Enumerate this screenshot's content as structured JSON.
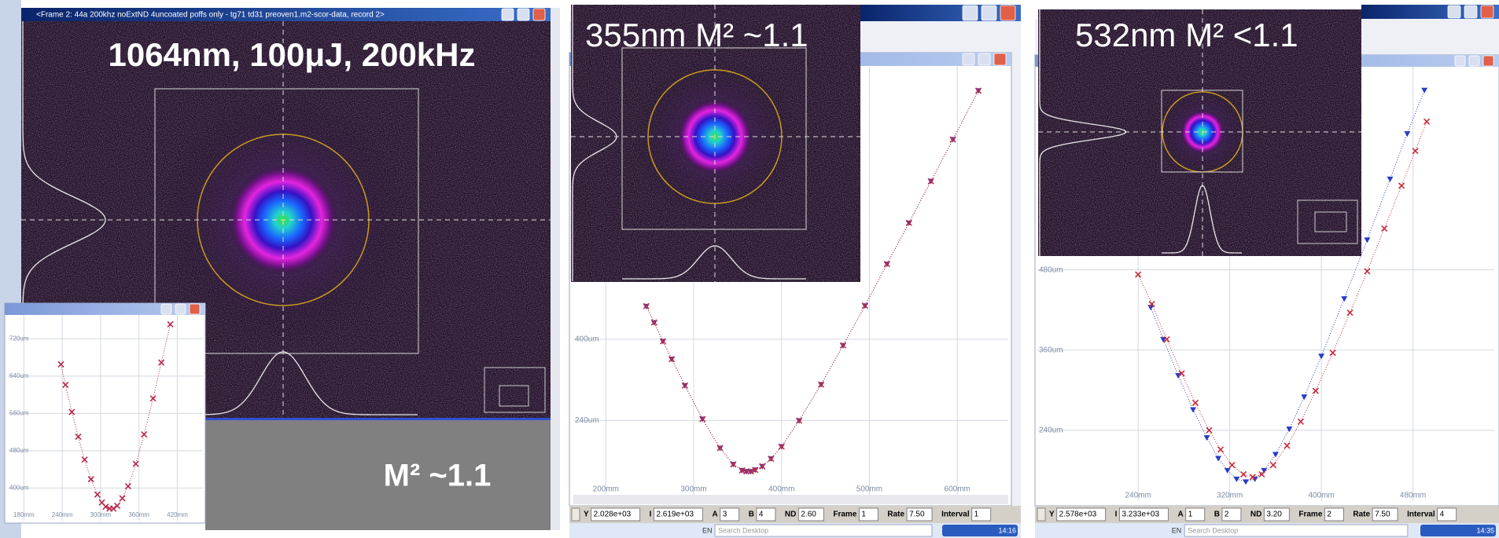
{
  "panels": [
    {
      "window_title": "<Frame 2:  44a 200khz noExtND 4uncoated poffs only - tg71 td31 preoven1.m2-scor-data, record 2>",
      "title": "1064nm, 100μJ, 200kHz",
      "m2_label": "M² ~1.1",
      "plot": {
        "type": "scatter",
        "xlim": [
          155,
          460
        ],
        "ylim": [
          330,
          771
        ],
        "xticks": [
          {
            "value": 180,
            "label": "180mm"
          },
          {
            "value": 240,
            "label": "240mm"
          },
          {
            "value": 300,
            "label": "300mm"
          },
          {
            "value": 360,
            "label": "360mm"
          },
          {
            "value": 420,
            "label": "420mm"
          }
        ],
        "yticks": [
          {
            "value": 400,
            "label": "400um"
          },
          {
            "value": 480,
            "label": "480um"
          },
          {
            "value": 560,
            "label": "560um"
          },
          {
            "value": 640,
            "label": "640um"
          },
          {
            "value": 720,
            "label": "720um"
          }
        ],
        "series": [
          {
            "color": "#b8284a",
            "marker": "x",
            "x": [
              238,
              245,
              255,
              265,
              275,
              285,
              295,
              302,
              308,
              314,
              320,
              326,
              334,
              343,
              355,
              368,
              382,
              395,
              409
            ],
            "values": [
              665,
              621,
              563,
              510,
              461,
              419,
              386,
              369,
              360,
              356,
              356,
              362,
              378,
              404,
              452,
              515,
              592,
              669,
              751
            ]
          }
        ]
      }
    },
    {
      "title": "355nm M² ~1.1",
      "plot": {
        "type": "scatter",
        "xlim": [
          163,
          658
        ],
        "ylim": [
          94,
          936
        ],
        "xticks": [
          {
            "value": 200,
            "label": "200mm"
          },
          {
            "value": 300,
            "label": "300mm"
          },
          {
            "value": 400,
            "label": "400mm"
          },
          {
            "value": 500,
            "label": "500mm"
          },
          {
            "value": 600,
            "label": "600mm"
          }
        ],
        "yticks": [
          {
            "value": 240,
            "label": "240um"
          },
          {
            "value": 400,
            "label": "400um"
          }
        ],
        "series": [
          {
            "color": "#2a3cc8",
            "marker": "v",
            "x": [
              246,
              255,
              265,
              275,
              290,
              310,
              330,
              345,
              355,
              360,
              365,
              370,
              378,
              388,
              400,
              420,
              445,
              470,
              495,
              520,
              545,
              570,
              595,
              624
            ],
            "values": [
              465,
              433,
              396,
              361,
              309,
              243,
              186,
              154,
              142,
              140,
              140,
              143,
              150,
              165,
              189,
              240,
              311,
              388,
              466,
              548,
              629,
              711,
              793,
              889
            ]
          },
          {
            "color": "#c82a3a",
            "marker": "x",
            "x": [
              246,
              255,
              265,
              275,
              290,
              310,
              330,
              345,
              355,
              360,
              365,
              370,
              378,
              388,
              400,
              420,
              445,
              470,
              495,
              520,
              545,
              570,
              595,
              624
            ],
            "values": [
              465,
              433,
              396,
              361,
              309,
              243,
              186,
              154,
              142,
              140,
              140,
              143,
              150,
              165,
              189,
              240,
              311,
              388,
              466,
              548,
              629,
              711,
              793,
              889
            ]
          }
        ]
      },
      "status_bar": [
        {
          "label": "Y",
          "value": "2.028e+03"
        },
        {
          "label": "I",
          "value": "2.619e+03"
        },
        {
          "label": "A",
          "value": "3"
        },
        {
          "label": "B",
          "value": "4"
        },
        {
          "label": "ND",
          "value": "2.60"
        },
        {
          "label": "Frame",
          "value": "1"
        },
        {
          "label": "Rate",
          "value": "7.50"
        },
        {
          "label": "Interval",
          "value": "1"
        }
      ],
      "taskbar": {
        "language": "EN",
        "search": "Search Desktop",
        "time": "14:16"
      }
    },
    {
      "title": "532nm M² <1.1",
      "plot": {
        "type": "scatter",
        "xlim": [
          152,
          551
        ],
        "ylim": [
          134,
          784
        ],
        "xticks": [
          {
            "value": 240,
            "label": "240mm"
          },
          {
            "value": 320,
            "label": "320mm"
          },
          {
            "value": 400,
            "label": "400mm"
          },
          {
            "value": 480,
            "label": "480mm"
          }
        ],
        "yticks": [
          {
            "value": 240,
            "label": "240um"
          },
          {
            "value": 360,
            "label": "360um"
          },
          {
            "value": 480,
            "label": "480um"
          }
        ],
        "series": [
          {
            "color": "#2a3cc8",
            "marker": "v",
            "x": [
              251,
              262,
              275,
              288,
              300,
              310,
              318,
              326,
              334,
              342,
              350,
              360,
              372,
              385,
              400,
              420,
              440,
              460,
              475,
              490
            ],
            "values": [
              424,
              376,
              322,
              271,
              229,
              198,
              180,
              167,
              163,
              167,
              180,
              204,
              242,
              290,
              351,
              437,
              525,
              616,
              684,
              749
            ]
          },
          {
            "color": "#c82a3a",
            "marker": "x",
            "x": [
              240,
              252,
              265,
              278,
              290,
              302,
              312,
              322,
              332,
              340,
              348,
              358,
              370,
              382,
              395,
              410,
              425,
              440,
              455,
              470,
              482,
              492
            ],
            "values": [
              473,
              429,
              376,
              325,
              281,
              240,
              211,
              188,
              174,
              170,
              174,
              188,
              217,
              253,
              299,
              356,
              416,
              478,
              542,
              606,
              658,
              702
            ]
          }
        ]
      },
      "status_bar": [
        {
          "label": "Y",
          "value": "2.578e+03"
        },
        {
          "label": "I",
          "value": "3.233e+03"
        },
        {
          "label": "A",
          "value": "1"
        },
        {
          "label": "B",
          "value": "2"
        },
        {
          "label": "ND",
          "value": "3.20"
        },
        {
          "label": "Frame",
          "value": "2"
        },
        {
          "label": "Rate",
          "value": "7.50"
        },
        {
          "label": "Interval",
          "value": "4"
        }
      ],
      "taskbar": {
        "language": "EN",
        "search": "Search Desktop",
        "time": "14:35"
      }
    }
  ]
}
